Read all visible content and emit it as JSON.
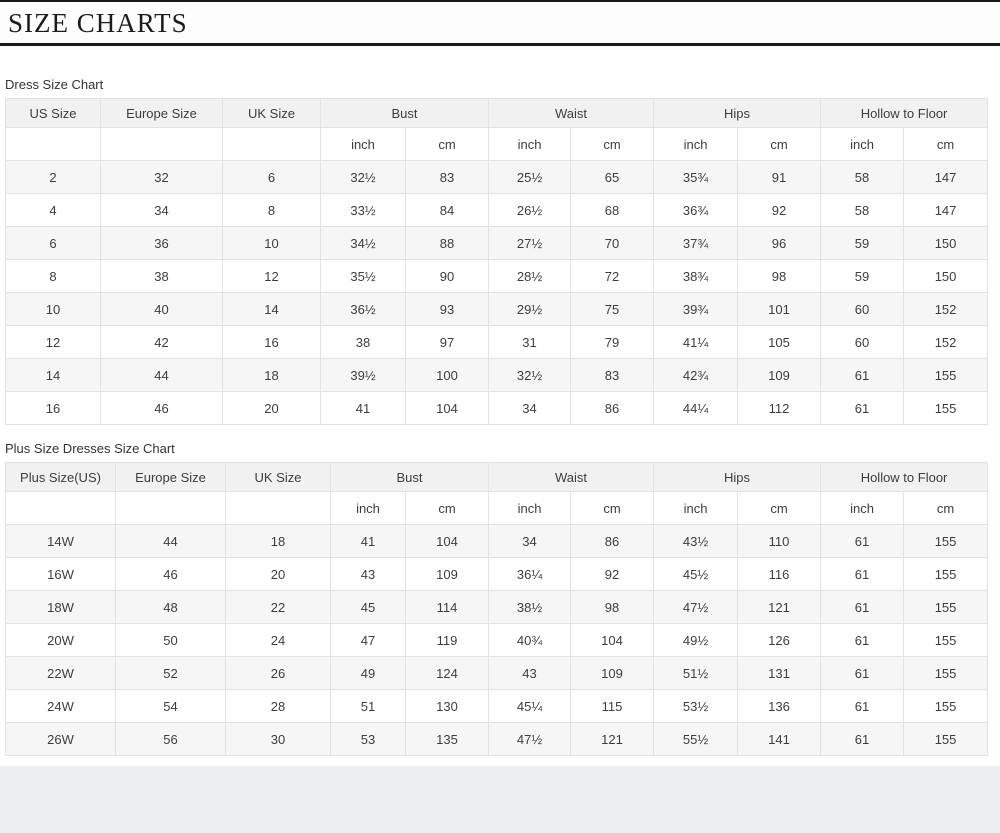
{
  "page": {
    "title": "SIZE CHARTS"
  },
  "colors": {
    "table_border": "#e2e2e2",
    "header_background": "#f1f1f1",
    "row_stripe": "#f6f6f6",
    "text": "#3d3d3d",
    "title_rule": "#1a1a1a",
    "footer_strip": "#edeeef"
  },
  "dress_chart": {
    "label": "Dress Size Chart",
    "columns": [
      "US Size",
      "Europe Size",
      "UK Size"
    ],
    "measure_groups": [
      "Bust",
      "Waist",
      "Hips",
      "Hollow to Floor"
    ],
    "unit_labels": [
      "inch",
      "cm"
    ],
    "rows": [
      [
        "2",
        "32",
        "6",
        "32½",
        "83",
        "25½",
        "65",
        "35¾",
        "91",
        "58",
        "147"
      ],
      [
        "4",
        "34",
        "8",
        "33½",
        "84",
        "26½",
        "68",
        "36¾",
        "92",
        "58",
        "147"
      ],
      [
        "6",
        "36",
        "10",
        "34½",
        "88",
        "27½",
        "70",
        "37¾",
        "96",
        "59",
        "150"
      ],
      [
        "8",
        "38",
        "12",
        "35½",
        "90",
        "28½",
        "72",
        "38¾",
        "98",
        "59",
        "150"
      ],
      [
        "10",
        "40",
        "14",
        "36½",
        "93",
        "29½",
        "75",
        "39¾",
        "101",
        "60",
        "152"
      ],
      [
        "12",
        "42",
        "16",
        "38",
        "97",
        "31",
        "79",
        "41¼",
        "105",
        "60",
        "152"
      ],
      [
        "14",
        "44",
        "18",
        "39½",
        "100",
        "32½",
        "83",
        "42¾",
        "109",
        "61",
        "155"
      ],
      [
        "16",
        "46",
        "20",
        "41",
        "104",
        "34",
        "86",
        "44¼",
        "112",
        "61",
        "155"
      ]
    ]
  },
  "plus_chart": {
    "label": "Plus Size Dresses Size Chart",
    "columns": [
      "Plus Size(US)",
      "Europe Size",
      "UK Size"
    ],
    "measure_groups": [
      "Bust",
      "Waist",
      "Hips",
      "Hollow to Floor"
    ],
    "unit_labels": [
      "inch",
      "cm"
    ],
    "rows": [
      [
        "14W",
        "44",
        "18",
        "41",
        "104",
        "34",
        "86",
        "43½",
        "110",
        "61",
        "155"
      ],
      [
        "16W",
        "46",
        "20",
        "43",
        "109",
        "36¼",
        "92",
        "45½",
        "116",
        "61",
        "155"
      ],
      [
        "18W",
        "48",
        "22",
        "45",
        "114",
        "38½",
        "98",
        "47½",
        "121",
        "61",
        "155"
      ],
      [
        "20W",
        "50",
        "24",
        "47",
        "119",
        "40¾",
        "104",
        "49½",
        "126",
        "61",
        "155"
      ],
      [
        "22W",
        "52",
        "26",
        "49",
        "124",
        "43",
        "109",
        "51½",
        "131",
        "61",
        "155"
      ],
      [
        "24W",
        "54",
        "28",
        "51",
        "130",
        "45¼",
        "115",
        "53½",
        "136",
        "61",
        "155"
      ],
      [
        "26W",
        "56",
        "30",
        "53",
        "135",
        "47½",
        "121",
        "55½",
        "141",
        "61",
        "155"
      ]
    ]
  }
}
